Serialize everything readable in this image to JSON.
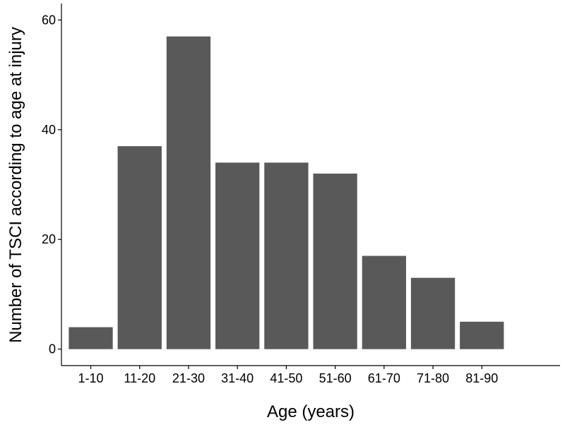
{
  "chart_data": {
    "type": "bar",
    "categories": [
      "1-10",
      "11-20",
      "21-30",
      "31-40",
      "41-50",
      "51-60",
      "61-70",
      "71-80",
      "81-90"
    ],
    "values": [
      4,
      37,
      57,
      34,
      34,
      32,
      17,
      13,
      5
    ],
    "xlabel": "Age (years)",
    "ylabel": "Number of TSCI according to age at injury",
    "ylim": [
      -3,
      63
    ],
    "yticks": [
      0,
      20,
      40,
      60
    ],
    "grid": false,
    "bar_color": "#595959",
    "axis_color": "#000000"
  }
}
